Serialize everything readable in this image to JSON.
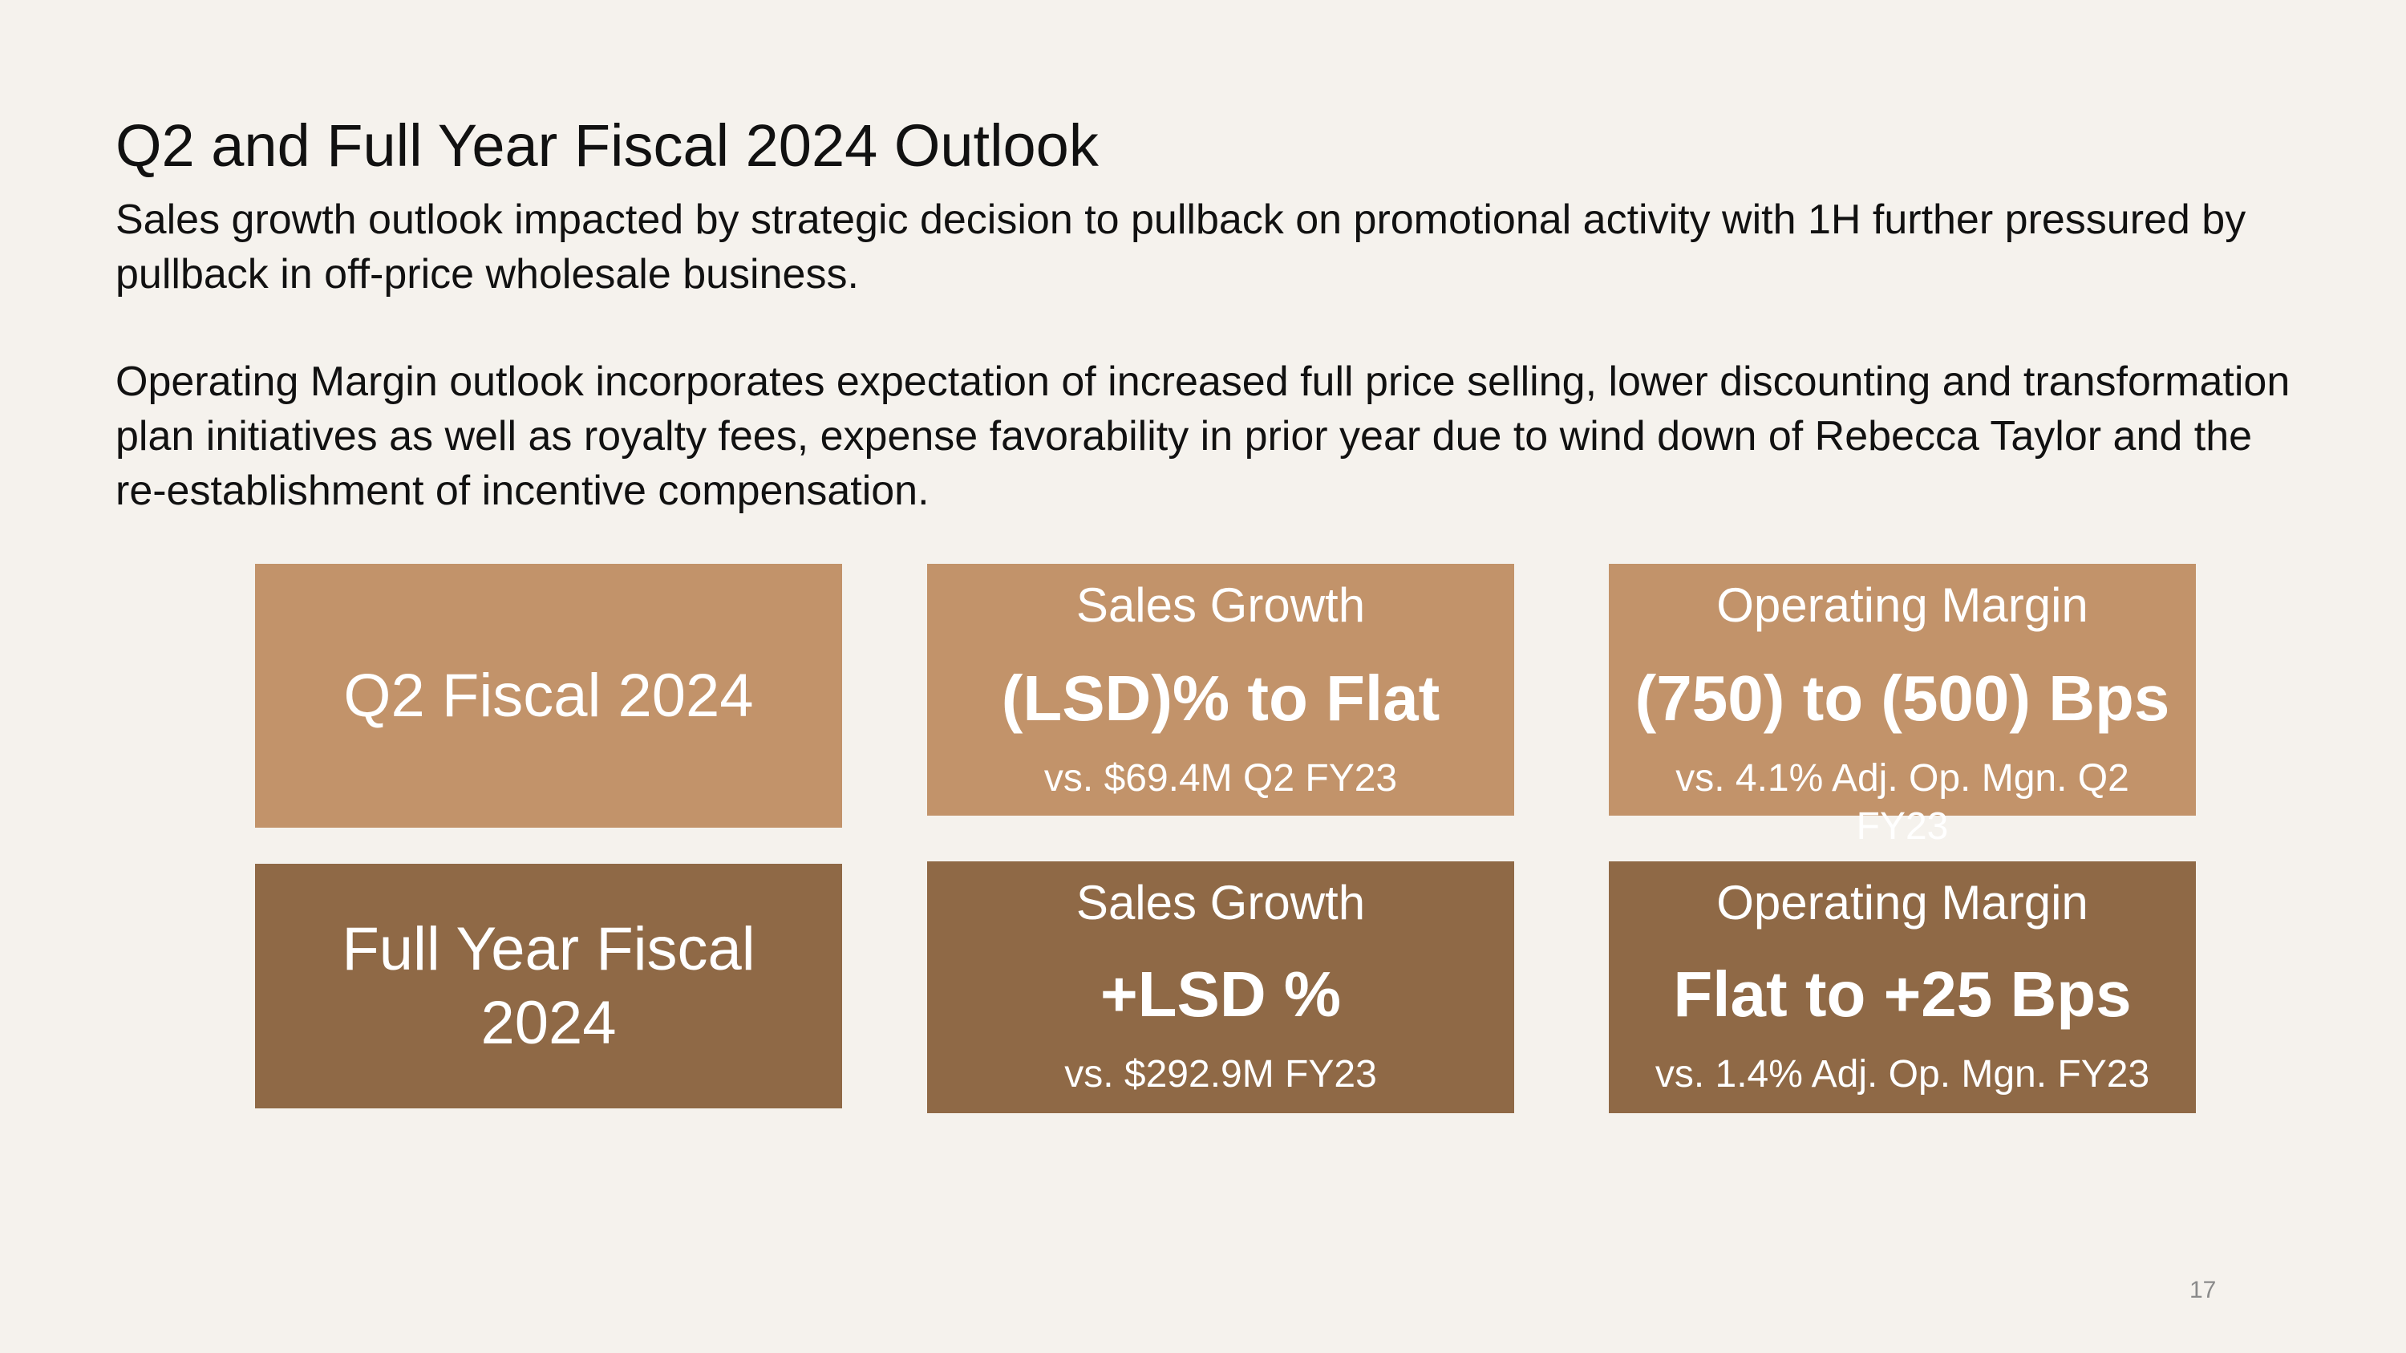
{
  "title": "Q2 and Full Year Fiscal 2024 Outlook",
  "paragraphs": [
    "Sales growth outlook impacted by strategic decision to pullback on promotional activity with 1H further pressured by pullback in off-price wholesale business.",
    "Operating Margin outlook incorporates expectation of increased full price selling, lower discounting and transformation plan initiatives as well as royalty fees, expense favorability in prior year due to wind down of Rebecca Taylor and the re-establishment of incentive compensation."
  ],
  "rows": [
    {
      "label": "Q2 Fiscal 2024",
      "sales": {
        "header": "Sales Growth",
        "value": "(LSD)% to Flat",
        "sub": "vs. $69.4M Q2 FY23"
      },
      "margin": {
        "header": "Operating Margin",
        "value": "(750) to (500) Bps",
        "sub": "vs. 4.1% Adj. Op. Mgn. Q2 FY23"
      }
    },
    {
      "label": "Full Year Fiscal 2024",
      "sales": {
        "header": "Sales Growth",
        "value": "+LSD %",
        "sub": "vs. $292.9M FY23"
      },
      "margin": {
        "header": "Operating Margin",
        "value": "Flat to +25 Bps",
        "sub": "vs. 1.4% Adj. Op. Mgn. FY23"
      }
    }
  ],
  "colors": {
    "light_box": "#c2936a",
    "dark_box": "#8f6946",
    "background": "#f5f2ed"
  },
  "page_number": "17"
}
